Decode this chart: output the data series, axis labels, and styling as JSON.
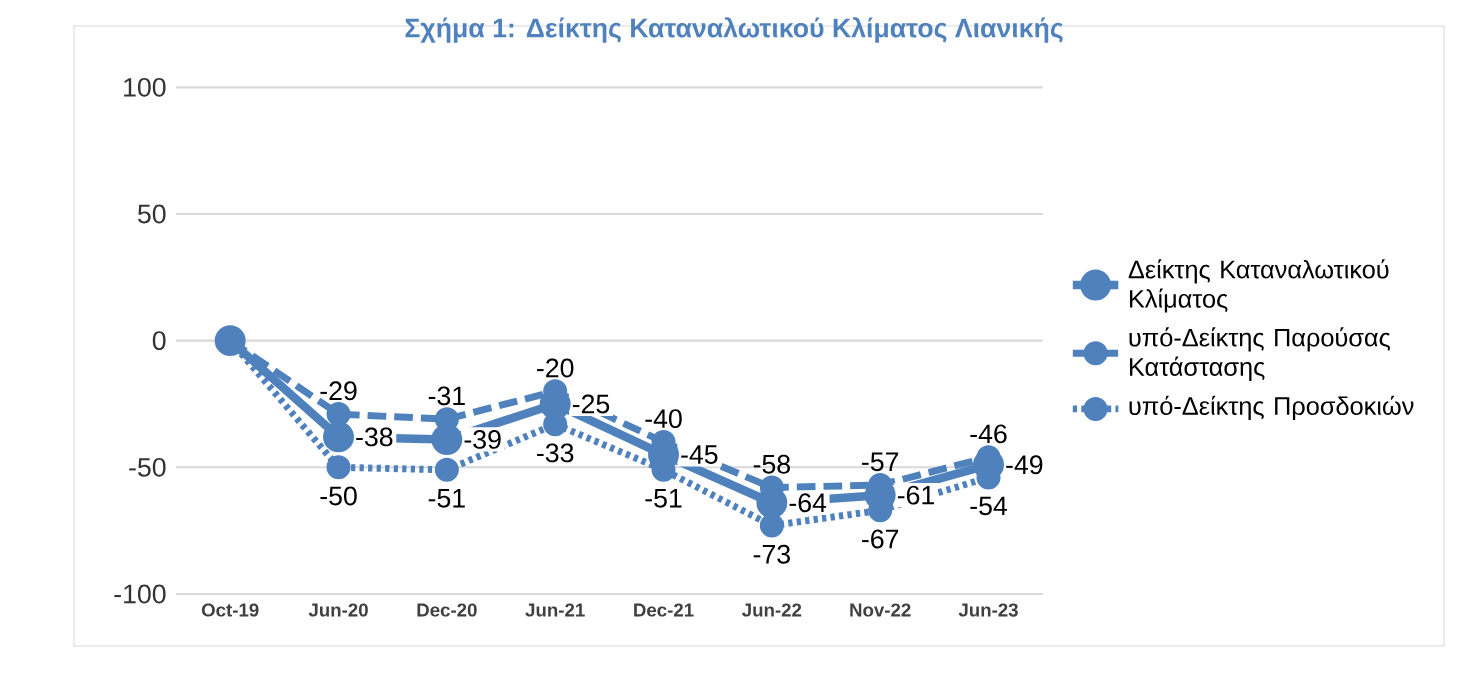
{
  "chart_data": {
    "type": "line",
    "title": "Σχήμα 1: Δείκτης Καταναλωτικού Κλίματος Λιανικής",
    "categories": [
      "Oct-19",
      "Jun-20",
      "Dec-20",
      "Jun-21",
      "Dec-21",
      "Jun-22",
      "Nov-22",
      "Jun-23"
    ],
    "series": [
      {
        "name": "Δείκτης Καταναλωτικού Κλίματος",
        "color": "#4f81bd",
        "line_style": "solid",
        "values": [
          0,
          -38,
          -39,
          -25,
          -45,
          -64,
          -61,
          -49
        ],
        "value_labels": [
          null,
          "-38",
          "-39",
          "-25",
          "-45",
          "-64",
          "-61",
          "-49"
        ]
      },
      {
        "name": "υπό-Δείκτης Παρούσας Κατάστασης",
        "color": "#4f81bd",
        "line_style": "dashed",
        "values": [
          0,
          -29,
          -31,
          -20,
          -40,
          -58,
          -57,
          -46
        ],
        "value_labels": [
          null,
          "-29",
          "-31",
          "-20",
          "-40",
          "-58",
          "-57",
          "-46"
        ]
      },
      {
        "name": "υπό-Δείκτης Προσδοκιών",
        "color": "#4f81bd",
        "line_style": "dotted",
        "values": [
          0,
          -50,
          -51,
          -33,
          -51,
          -73,
          -67,
          -54
        ],
        "value_labels": [
          null,
          "-50",
          "-51",
          "-33",
          "-51",
          "-73",
          "-67",
          "-54"
        ]
      }
    ],
    "ylim": [
      -100,
      100
    ],
    "yticks": [
      -100,
      -50,
      0,
      50,
      100
    ],
    "grid": "y",
    "legend": "right",
    "marker": "circle"
  }
}
